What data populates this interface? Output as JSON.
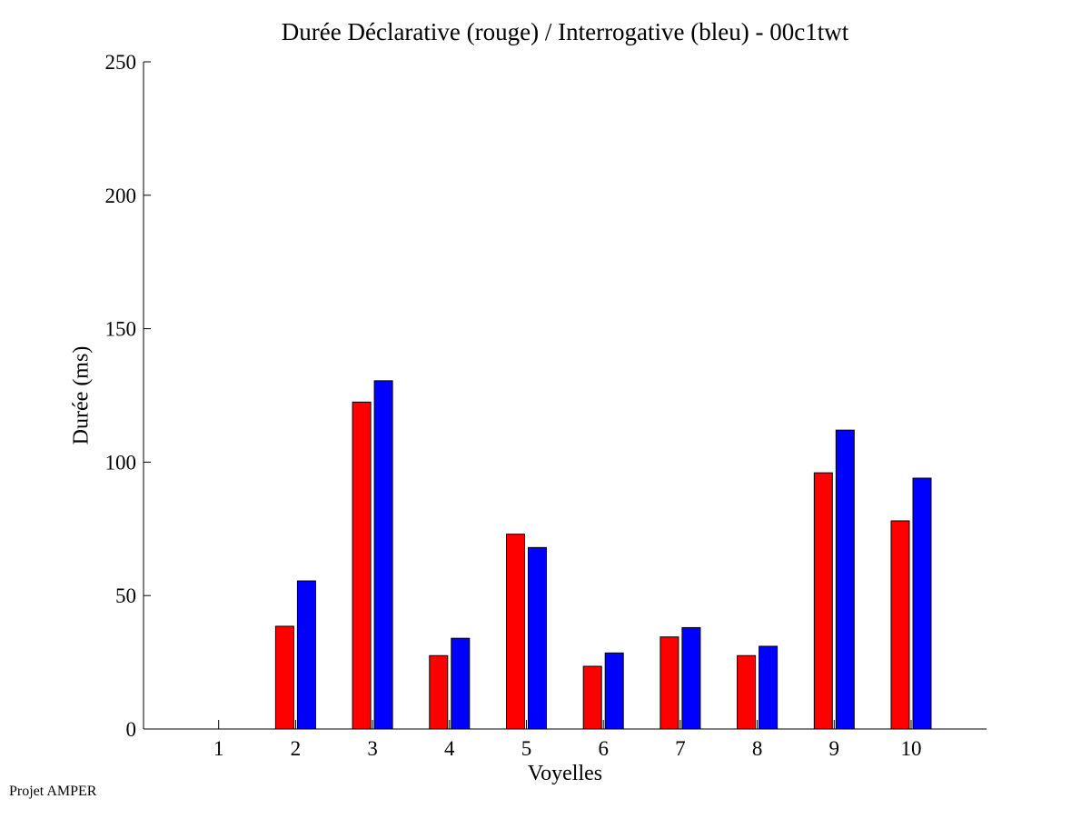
{
  "chart_data": {
    "type": "bar",
    "title": "Durée Déclarative (rouge) / Interrogative (bleu) - 00c1twt",
    "xlabel": "Voyelles",
    "ylabel": "Durée (ms)",
    "categories": [
      "1",
      "2",
      "3",
      "4",
      "5",
      "6",
      "7",
      "8",
      "9",
      "10"
    ],
    "ylim": [
      0,
      250
    ],
    "yticks": [
      0,
      50,
      100,
      150,
      200,
      250
    ],
    "grid": false,
    "series": [
      {
        "values": [
          0,
          38.5,
          122.5,
          27.5,
          73,
          23.5,
          34.5,
          27.5,
          96,
          78
        ],
        "color": "#ff0000"
      },
      {
        "values": [
          0,
          55.5,
          130.5,
          34,
          68,
          28.5,
          38,
          31,
          112,
          94
        ],
        "color": "#0000ff"
      }
    ]
  },
  "footer": {
    "text": "Projet AMPER"
  }
}
